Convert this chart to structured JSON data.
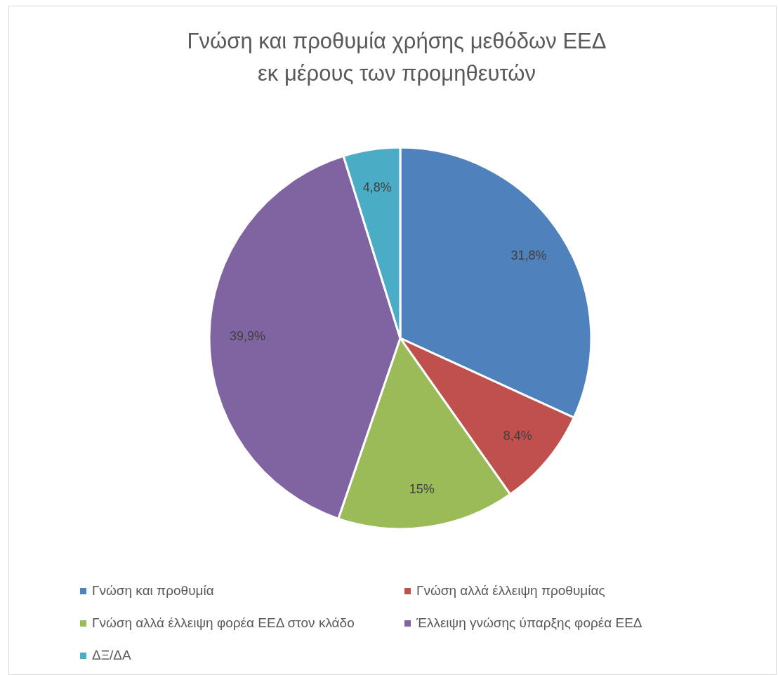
{
  "chart_data": {
    "type": "pie",
    "title": "Γνώση και προθυμία χρήσης μεθόδων ΕΕΔ\nεκ μέρους των προμηθευτών",
    "categories": [
      "Γνώση και προθυμία",
      "Γνώση αλλά έλλειψη προθυμίας",
      "Γνώση αλλά έλλειψη φορέα ΕΕΔ στον κλάδο",
      "Έλλειψη γνώσης ύπαρξης φορέα ΕΕΔ",
      "ΔΞ/ΔΑ"
    ],
    "values": [
      31.8,
      8.4,
      15,
      39.9,
      4.8
    ],
    "value_labels": [
      "31,8%",
      "8,4%",
      "15%",
      "39,9%",
      "4,8%"
    ],
    "colors": [
      "#4f81bd",
      "#c0504d",
      "#9bbb59",
      "#8064a2",
      "#4bacc6"
    ],
    "legend": "bottom"
  }
}
